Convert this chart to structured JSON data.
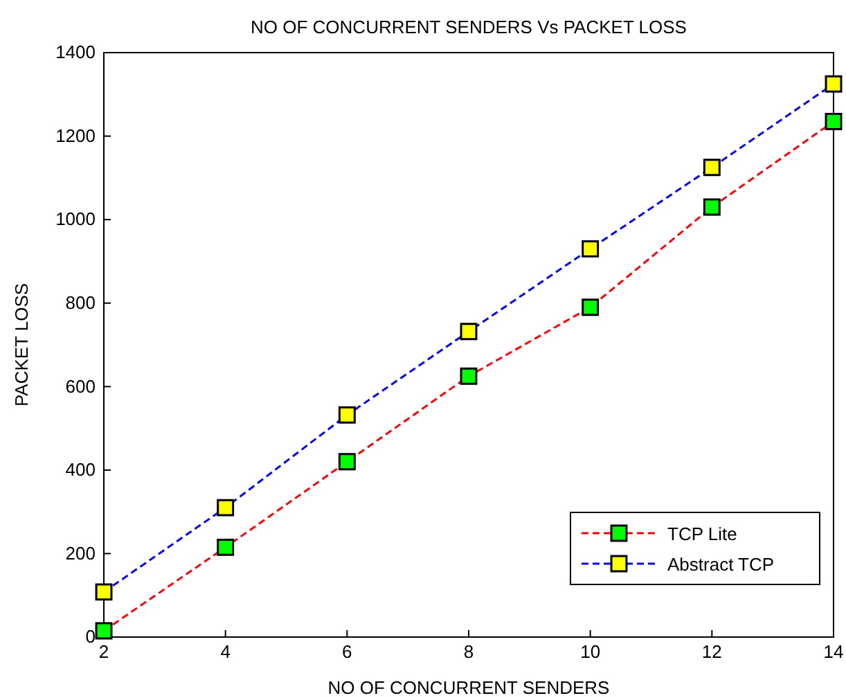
{
  "chart_data": {
    "type": "line",
    "title": "NO OF CONCURRENT SENDERS Vs PACKET LOSS",
    "xlabel": "NO OF CONCURRENT SENDERS",
    "ylabel": "PACKET LOSS",
    "x": [
      2,
      4,
      6,
      8,
      10,
      12,
      14
    ],
    "series": [
      {
        "name": "TCP Lite",
        "color": "#ff0000",
        "colors": [
          "#00ff00",
          "#00ff00",
          "#00ff00",
          "#00ff00",
          "#00ff00",
          "#00ff00",
          "#00ff00"
        ],
        "values": [
          15,
          215,
          420,
          625,
          790,
          1030,
          1235
        ]
      },
      {
        "name": "Abstract TCP",
        "color": "#0000ff",
        "colors": [
          "#ffff00",
          "#ffff00",
          "#ffff00",
          "#ffff00",
          "#ffff00",
          "#ffff00",
          "#ffff00"
        ],
        "values": [
          108,
          310,
          532,
          732,
          930,
          1125,
          1325
        ]
      }
    ],
    "xlim": [
      2,
      14
    ],
    "xticks": [
      2,
      4,
      6,
      8,
      10,
      12,
      14
    ],
    "ylim": [
      0,
      1400
    ],
    "yticks": [
      0,
      200,
      400,
      600,
      800,
      1000,
      1200,
      1400
    ],
    "grid": false,
    "legend": "bottom right",
    "marker": "square",
    "line_style": "dashed"
  }
}
